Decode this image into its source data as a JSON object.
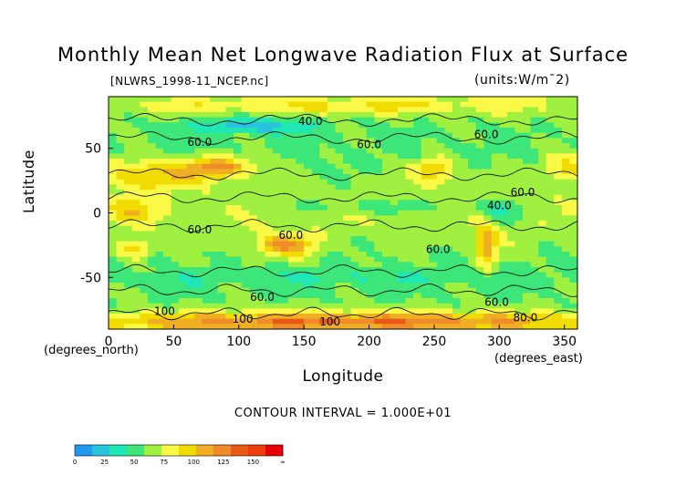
{
  "chart_data": {
    "type": "heatmap",
    "title": "Monthly Mean Net Longwave Radiation Flux at Surface",
    "subtitle": "[NLWRS_1998-11_NCEP.nc]",
    "units": "(units:W/m¯2)",
    "xlabel": "Longitude",
    "ylabel": "Latitude",
    "x_unit_label": "(degrees_east)",
    "y_unit_label": "(degrees_north)",
    "xlim": [
      0,
      360
    ],
    "ylim": [
      -90,
      90
    ],
    "x_ticks": [
      "0",
      "50",
      "100",
      "150",
      "200",
      "250",
      "300",
      "350"
    ],
    "x_tick_values": [
      0,
      50,
      100,
      150,
      200,
      250,
      300,
      350
    ],
    "y_ticks": [
      "50",
      "0",
      "-50"
    ],
    "y_tick_values": [
      50,
      0,
      -50
    ],
    "contour_interval": "CONTOUR INTERVAL = 1.000E+01",
    "colorbar": {
      "labels": [
        "0",
        "25",
        "50",
        "75",
        "100",
        "125",
        "150",
        "∞"
      ],
      "colors": [
        "#1e9bf0",
        "#28c3dc",
        "#1ee6b4",
        "#3ce678",
        "#a0f040",
        "#fafa46",
        "#f0dc00",
        "#f0af23",
        "#f08c28",
        "#e65a14",
        "#f03c0a",
        "#e60000"
      ]
    },
    "contour_labels": [
      {
        "text": "60.0",
        "lon": 70,
        "lat": 52
      },
      {
        "text": "60.0",
        "lon": 200,
        "lat": 50
      },
      {
        "text": "60.0",
        "lon": 290,
        "lat": 58
      },
      {
        "text": "60.0",
        "lon": 318,
        "lat": 13
      },
      {
        "text": "40.0",
        "lon": 300,
        "lat": 3
      },
      {
        "text": "40.0",
        "lon": 155,
        "lat": 68
      },
      {
        "text": "60.0",
        "lon": 70,
        "lat": -16
      },
      {
        "text": "60.0",
        "lon": 140,
        "lat": -20
      },
      {
        "text": "60.0",
        "lon": 253,
        "lat": -31
      },
      {
        "text": "60.0",
        "lon": 118,
        "lat": -68
      },
      {
        "text": "60.0",
        "lon": 298,
        "lat": -72
      },
      {
        "text": "100",
        "lon": 43,
        "lat": -79
      },
      {
        "text": "100",
        "lon": 103,
        "lat": -85
      },
      {
        "text": "100",
        "lon": 170,
        "lat": -87
      },
      {
        "text": "80.0",
        "lon": 320,
        "lat": -84
      }
    ]
  }
}
